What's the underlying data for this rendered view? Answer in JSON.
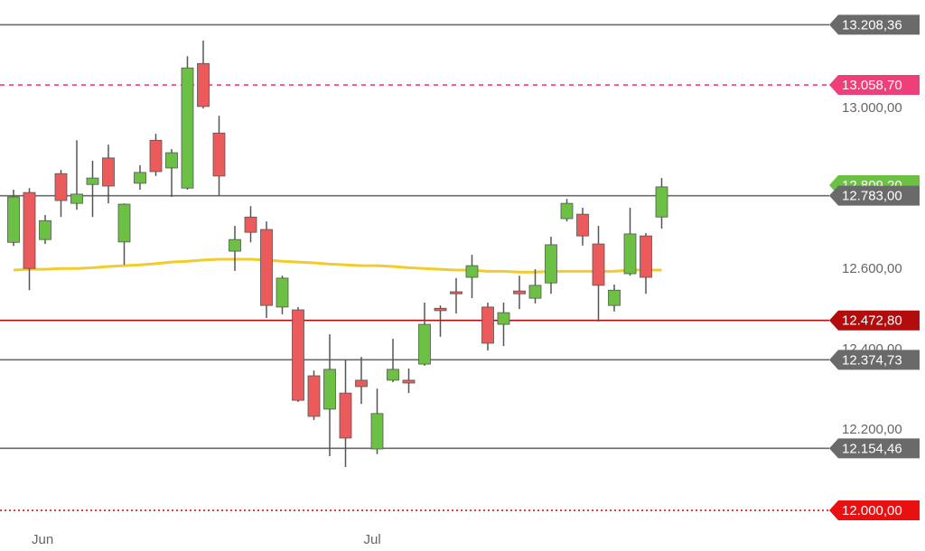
{
  "chart_data": {
    "type": "candlestick",
    "categories": [
      null,
      null,
      "Jun",
      null,
      null,
      null,
      null,
      null,
      null,
      null,
      null,
      null,
      null,
      null,
      null,
      null,
      null,
      null,
      null,
      null,
      null,
      null,
      null,
      "Jul",
      null,
      null,
      null,
      null,
      null,
      null,
      null,
      null,
      null,
      null,
      null,
      null,
      null,
      null,
      null,
      null,
      null,
      null
    ],
    "open": [
      12667,
      12791,
      12674,
      12838,
      12764,
      12811,
      12877,
      12668,
      12814,
      12921,
      12852,
      12802,
      13112,
      12939,
      12645,
      12730,
      12699,
      12506,
      12499,
      12335,
      12252,
      12292,
      12324,
      12153,
      12324,
      12324,
      12364,
      12503,
      12544,
      12580,
      12506,
      12463,
      12546,
      12528,
      12566,
      12726,
      12737,
      12663,
      12510,
      12589,
      12683,
      12730
    ],
    "high": [
      12798,
      12802,
      12735,
      12847,
      12921,
      12870,
      12910,
      12764,
      12859,
      12937,
      12899,
      13130,
      13169,
      12982,
      12708,
      12757,
      12719,
      12584,
      12506,
      12348,
      12438,
      12375,
      12382,
      12303,
      12427,
      12353,
      12517,
      12510,
      12578,
      12636,
      12517,
      12517,
      12584,
      12600,
      12681,
      12775,
      12753,
      12708,
      12562,
      12753,
      12690,
      12827
    ],
    "low": [
      12658,
      12548,
      12663,
      12730,
      12748,
      12730,
      12764,
      12611,
      12798,
      12832,
      12780,
      12798,
      13000,
      12782,
      12596,
      12667,
      12479,
      12488,
      12270,
      12225,
      12135,
      12108,
      12265,
      12140,
      12319,
      12292,
      12360,
      12432,
      12490,
      12528,
      12398,
      12409,
      12501,
      12515,
      12539,
      12719,
      12659,
      12470,
      12495,
      12584,
      12539,
      12701
    ],
    "close": [
      12780,
      12602,
      12721,
      12771,
      12787,
      12827,
      12807,
      12762,
      12841,
      12843,
      12890,
      13101,
      13005,
      12832,
      12674,
      12692,
      12510,
      12578,
      12274,
      12234,
      12351,
      12180,
      12308,
      12241,
      12351,
      12317,
      12463,
      12497,
      12539,
      12609,
      12416,
      12492,
      12539,
      12560,
      12661,
      12764,
      12683,
      12560,
      12548,
      12688,
      12580,
      12805
    ],
    "up_color": "#6cc043",
    "down_color": "#ec5b5b",
    "moving_average": {
      "color": "#f2cc2c",
      "values": [
        12598,
        12600,
        12600,
        12602,
        12602,
        12604,
        12607,
        12609,
        12611,
        12614,
        12618,
        12620,
        12623,
        12625,
        12625,
        12625,
        12623,
        12620,
        12618,
        12616,
        12613,
        12611,
        12609,
        12609,
        12607,
        12604,
        12602,
        12600,
        12598,
        12598,
        12595,
        12595,
        12593,
        12593,
        12595,
        12595,
        12595,
        12595,
        12595,
        12598,
        12598,
        12598
      ]
    },
    "ylim": [
      11899,
      13270
    ],
    "yticks": [
      {
        "value": 12200,
        "label": "12.200,00"
      },
      {
        "value": 12400,
        "label": "12.400,00"
      },
      {
        "value": 12600,
        "label": "12.600,00"
      },
      {
        "value": 12800,
        "label": "12.800,00"
      },
      {
        "value": 13000,
        "label": "13.000,00"
      }
    ],
    "price_tag": {
      "value": 12809.2,
      "label": "12.809,20",
      "color": "#6cc043"
    },
    "levels": [
      {
        "value": 13208.36,
        "label": "13.208,36",
        "color": "#6a6a6a",
        "style": "solid"
      },
      {
        "value": 13058.7,
        "label": "13.058,70",
        "color": "#ee3f78",
        "style": "dashed"
      },
      {
        "value": 12783.0,
        "label": "12.783,00",
        "color": "#6a6a6a",
        "style": "solid"
      },
      {
        "value": 12472.8,
        "label": "12.472,80",
        "color": "#b30c0c",
        "style": "solid"
      },
      {
        "value": 12374.73,
        "label": "12.374,73",
        "color": "#6a6a6a",
        "style": "solid"
      },
      {
        "value": 12154.46,
        "label": "12.154,46",
        "color": "#6a6a6a",
        "style": "solid"
      },
      {
        "value": 12000.0,
        "label": "12.000,00",
        "color": "#e81010",
        "style": "dotted"
      }
    ]
  }
}
